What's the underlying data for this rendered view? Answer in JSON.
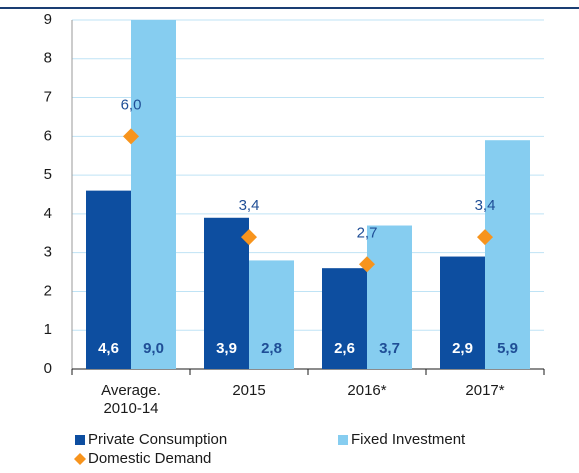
{
  "chart_data": {
    "type": "bar",
    "categories": [
      "Average. 2010-14",
      "2015",
      "2016*",
      "2017*"
    ],
    "series": [
      {
        "name": "Private Consumption",
        "color": "#0d4ea0",
        "values": [
          4.6,
          3.9,
          2.6,
          2.9
        ],
        "value_labels": [
          "4,6",
          "3,9",
          "2,6",
          "2,9"
        ]
      },
      {
        "name": "Fixed Investment",
        "color": "#86cdf0",
        "values": [
          9.0,
          2.8,
          3.7,
          5.9
        ],
        "value_labels": [
          "9,0",
          "2,8",
          "3,7",
          "5,9"
        ]
      },
      {
        "name": "Domestic Demand",
        "type": "marker",
        "color": "#f7941d",
        "values": [
          6.0,
          3.4,
          2.7,
          3.4
        ],
        "value_labels": [
          "6,0",
          "3,4",
          "2,7",
          "3,4"
        ]
      }
    ],
    "ylim": [
      0,
      9
    ],
    "yticks": [
      0,
      1,
      2,
      3,
      4,
      5,
      6,
      7,
      8,
      9
    ],
    "grid": true
  }
}
